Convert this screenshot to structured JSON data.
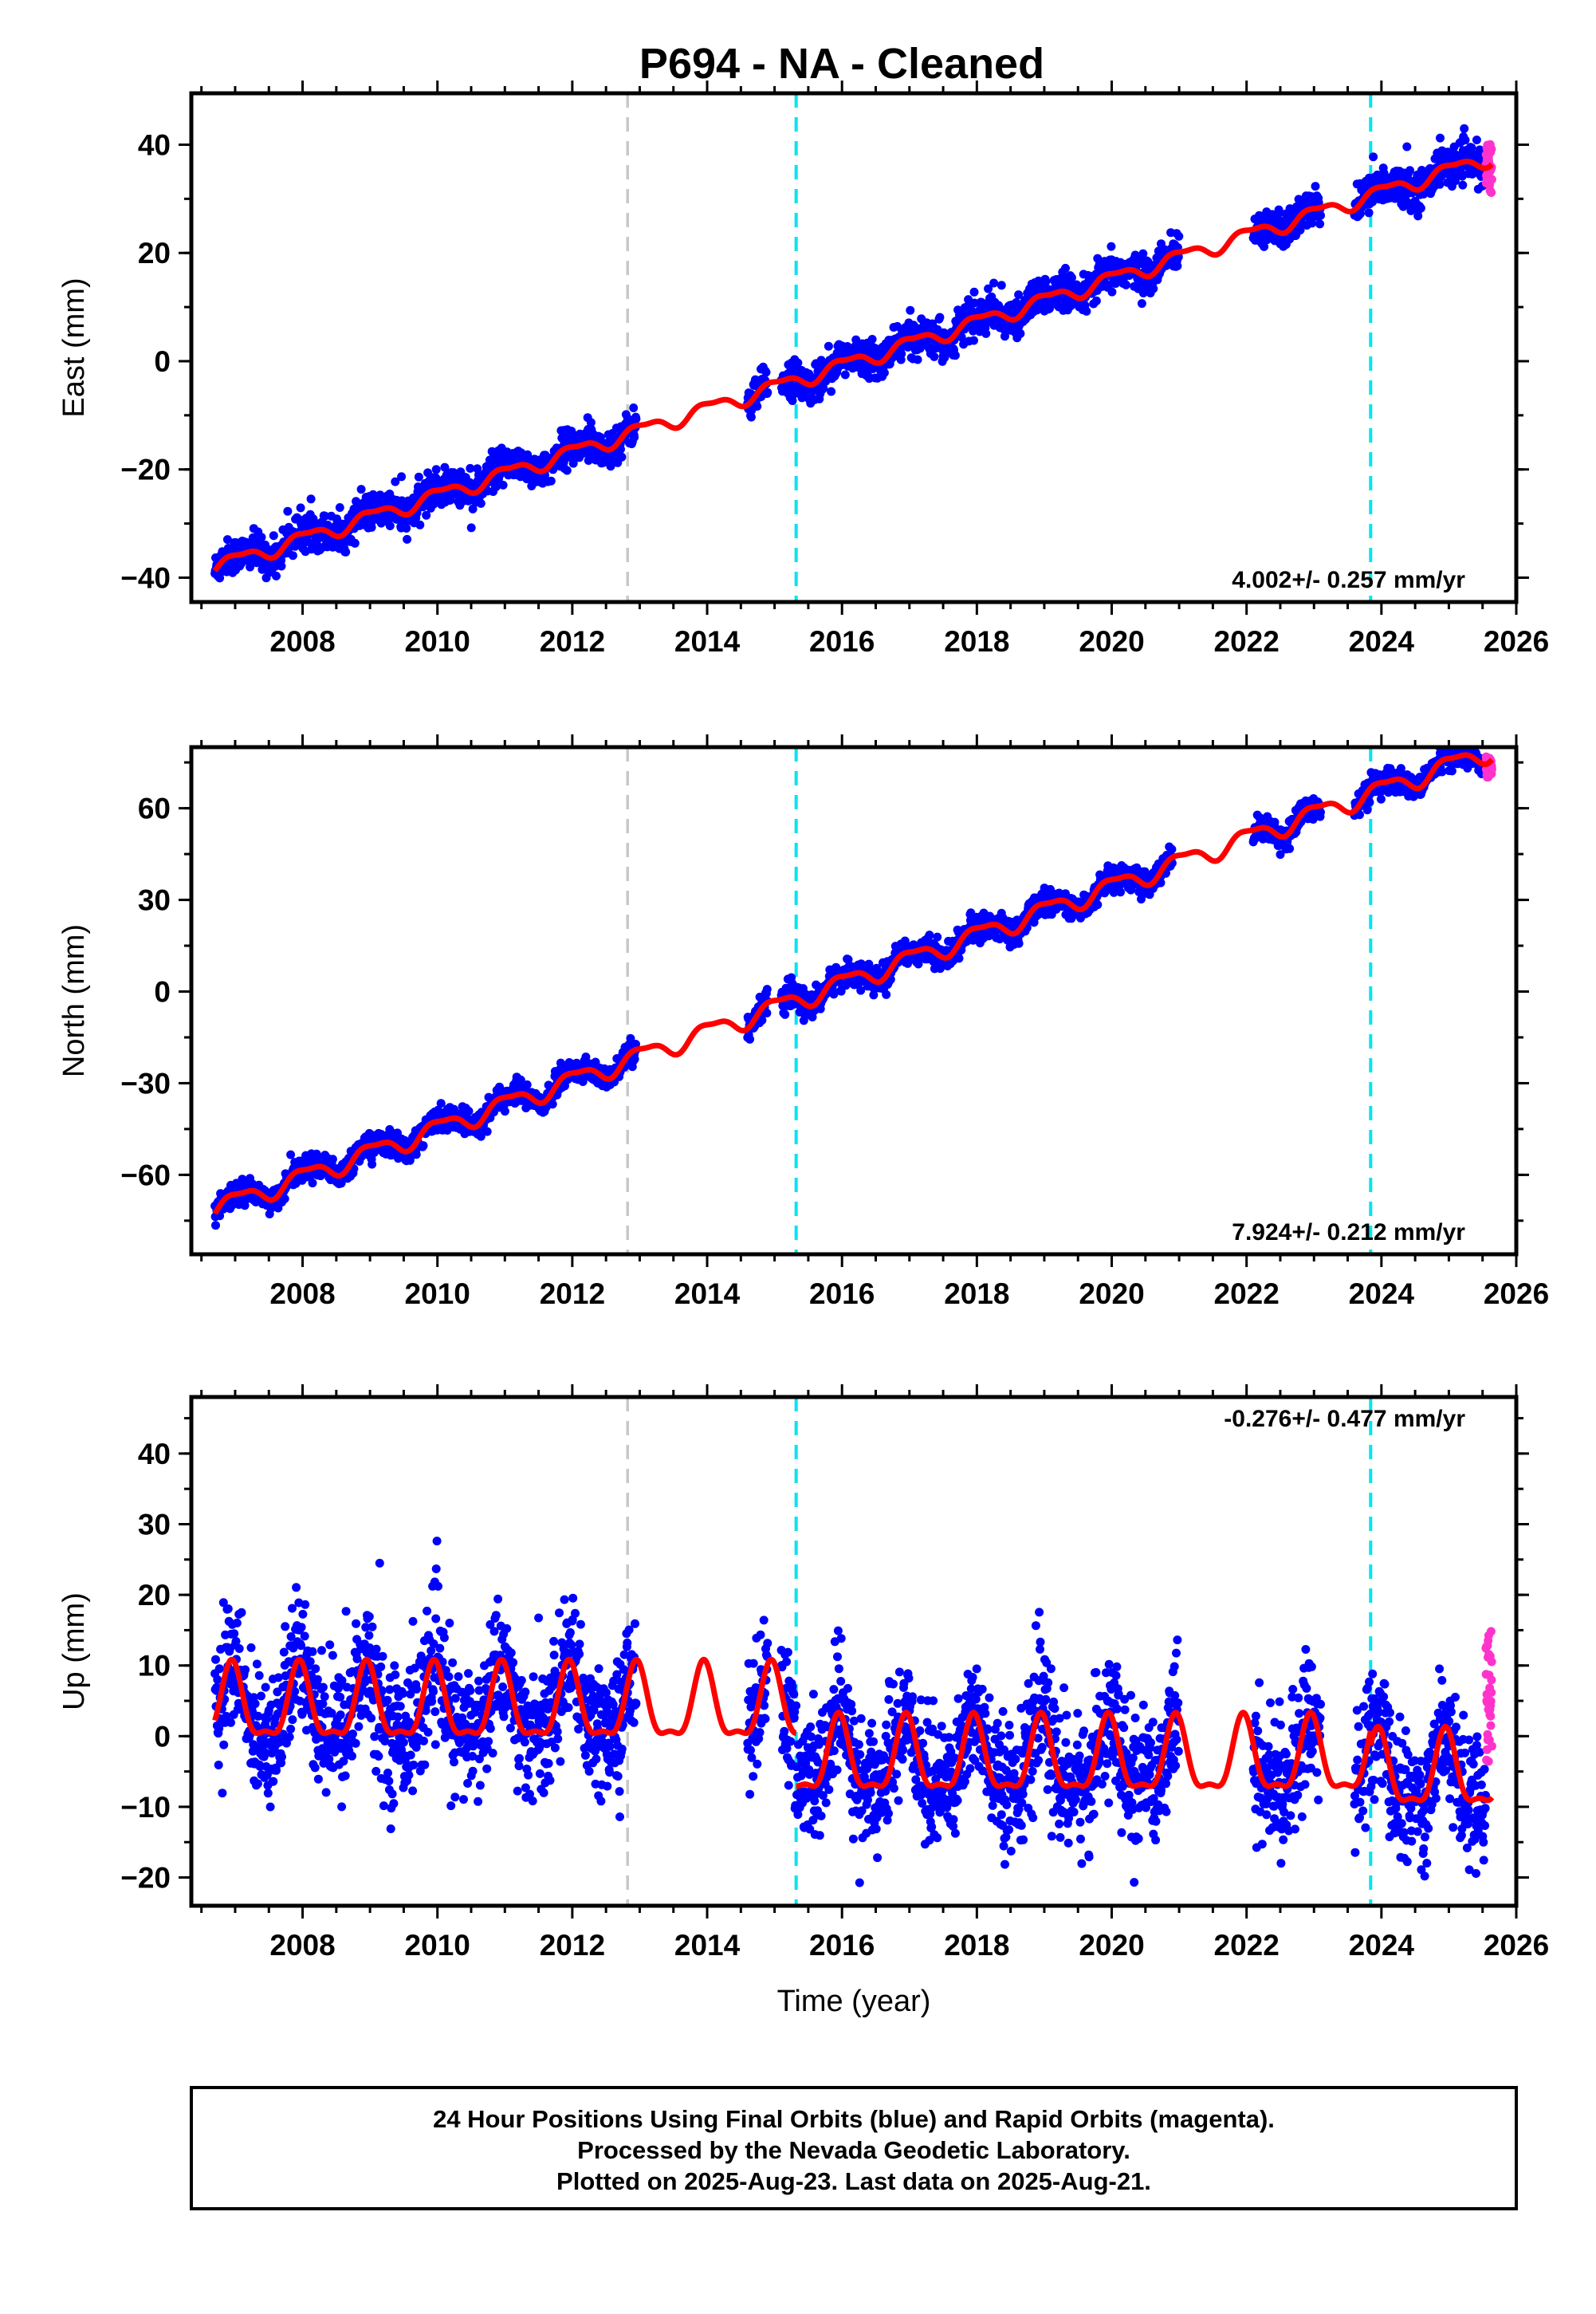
{
  "title": "P694  - NA - Cleaned",
  "colors": {
    "final_orbits": "#0000ff",
    "rapid_orbits": "#ff33cc",
    "model_fit": "#ff0000",
    "equipment_change": "#c8c8c8",
    "earthquake": "#00e5ee"
  },
  "chart_data": [
    {
      "type": "scatter",
      "component": "east",
      "ylabel": "East (mm)",
      "xlim": [
        2006.35,
        2026.0
      ],
      "ylim": [
        -44.5,
        49.5
      ],
      "x_ticks": [
        2008,
        2010,
        2012,
        2014,
        2016,
        2018,
        2020,
        2022,
        2024,
        2026
      ],
      "y_ticks": [
        -40,
        -20,
        0,
        20,
        40
      ],
      "rate_text": "4.002+/- 0.257 mm/yr",
      "rate_position": "bottom-right",
      "vertical_lines": [
        {
          "x": 2012.82,
          "kind": "equipment_change"
        },
        {
          "x": 2015.32,
          "kind": "earthquake"
        },
        {
          "x": 2023.84,
          "kind": "earthquake"
        }
      ],
      "model": {
        "offset_at_2006_7": -38.0,
        "rate": 4.002,
        "annual_amplitude": 1.3,
        "semiannual_amplitude": 0.5
      },
      "final_data_ranges": [
        [
          2006.7,
          2012.95
        ],
        [
          2014.6,
          2014.9
        ],
        [
          2015.1,
          2021.0
        ],
        [
          2022.1,
          2023.1
        ],
        [
          2023.6,
          2025.55
        ]
      ],
      "final_scatter_sd": 1.6,
      "rapid_data": {
        "x_range": [
          2025.55,
          2025.64
        ],
        "y_range": [
          31,
          41
        ]
      }
    },
    {
      "type": "scatter",
      "component": "north",
      "ylabel": "North (mm)",
      "xlim": [
        2006.35,
        2026.0
      ],
      "ylim": [
        -86,
        80
      ],
      "x_ticks": [
        2008,
        2010,
        2012,
        2014,
        2016,
        2018,
        2020,
        2022,
        2024,
        2026
      ],
      "y_ticks": [
        -60,
        -30,
        0,
        30,
        60
      ],
      "rate_text": "7.924+/- 0.212 mm/yr",
      "rate_position": "bottom-right",
      "vertical_lines": [
        {
          "x": 2012.82,
          "kind": "equipment_change"
        },
        {
          "x": 2015.32,
          "kind": "earthquake"
        },
        {
          "x": 2023.84,
          "kind": "earthquake"
        }
      ],
      "model": {
        "offset_at_2006_7": -71.0,
        "rate": 7.924,
        "annual_amplitude": 3.0,
        "semiannual_amplitude": 1.0
      },
      "final_data_ranges": [
        [
          2006.7,
          2012.95
        ],
        [
          2014.6,
          2014.9
        ],
        [
          2015.1,
          2020.9
        ],
        [
          2022.1,
          2023.1
        ],
        [
          2023.6,
          2025.55
        ]
      ],
      "final_scatter_sd": 2.0,
      "rapid_data": {
        "x_range": [
          2025.55,
          2025.64
        ],
        "y_range": [
          70,
          77
        ]
      }
    },
    {
      "type": "scatter",
      "component": "up",
      "ylabel": "Up (mm)",
      "xlabel": "Time (year)",
      "xlim": [
        2006.35,
        2026.0
      ],
      "ylim": [
        -24,
        48
      ],
      "x_ticks": [
        2008,
        2010,
        2012,
        2014,
        2016,
        2018,
        2020,
        2022,
        2024,
        2026
      ],
      "y_ticks": [
        -20,
        -10,
        0,
        10,
        20,
        30,
        40
      ],
      "rate_text": "-0.276+/- 0.477 mm/yr",
      "rate_position": "top-right",
      "vertical_lines": [
        {
          "x": 2012.82,
          "kind": "equipment_change"
        },
        {
          "x": 2015.32,
          "kind": "earthquake"
        },
        {
          "x": 2023.84,
          "kind": "earthquake"
        }
      ],
      "model": {
        "segments": [
          {
            "x_range": [
              2006.7,
              2015.32
            ],
            "base": 4.0,
            "amplitude": 6.5,
            "sharp_seasonal": true
          },
          {
            "x_range": [
              2015.32,
              2023.84
            ],
            "base": -3.5,
            "amplitude": 6.5,
            "sharp_seasonal": true
          },
          {
            "x_range": [
              2023.84,
              2025.64
            ],
            "base": -5.5,
            "amplitude": 6.5,
            "sharp_seasonal": true
          }
        ]
      },
      "final_data_ranges": [
        [
          2006.7,
          2012.95
        ],
        [
          2014.6,
          2014.9
        ],
        [
          2015.1,
          2021.0
        ],
        [
          2022.1,
          2023.1
        ],
        [
          2023.6,
          2025.55
        ]
      ],
      "final_scatter_sd": 4.5,
      "rapid_data": {
        "x_range": [
          2025.55,
          2025.64
        ],
        "y_range": [
          -5,
          15
        ]
      }
    }
  ],
  "footer": {
    "line1": "24 Hour Positions Using Final Orbits (blue) and Rapid Orbits (magenta).",
    "line2": "Processed by the Nevada Geodetic Laboratory.",
    "line3": "Plotted on 2025-Aug-23. Last data on 2025-Aug-21."
  }
}
